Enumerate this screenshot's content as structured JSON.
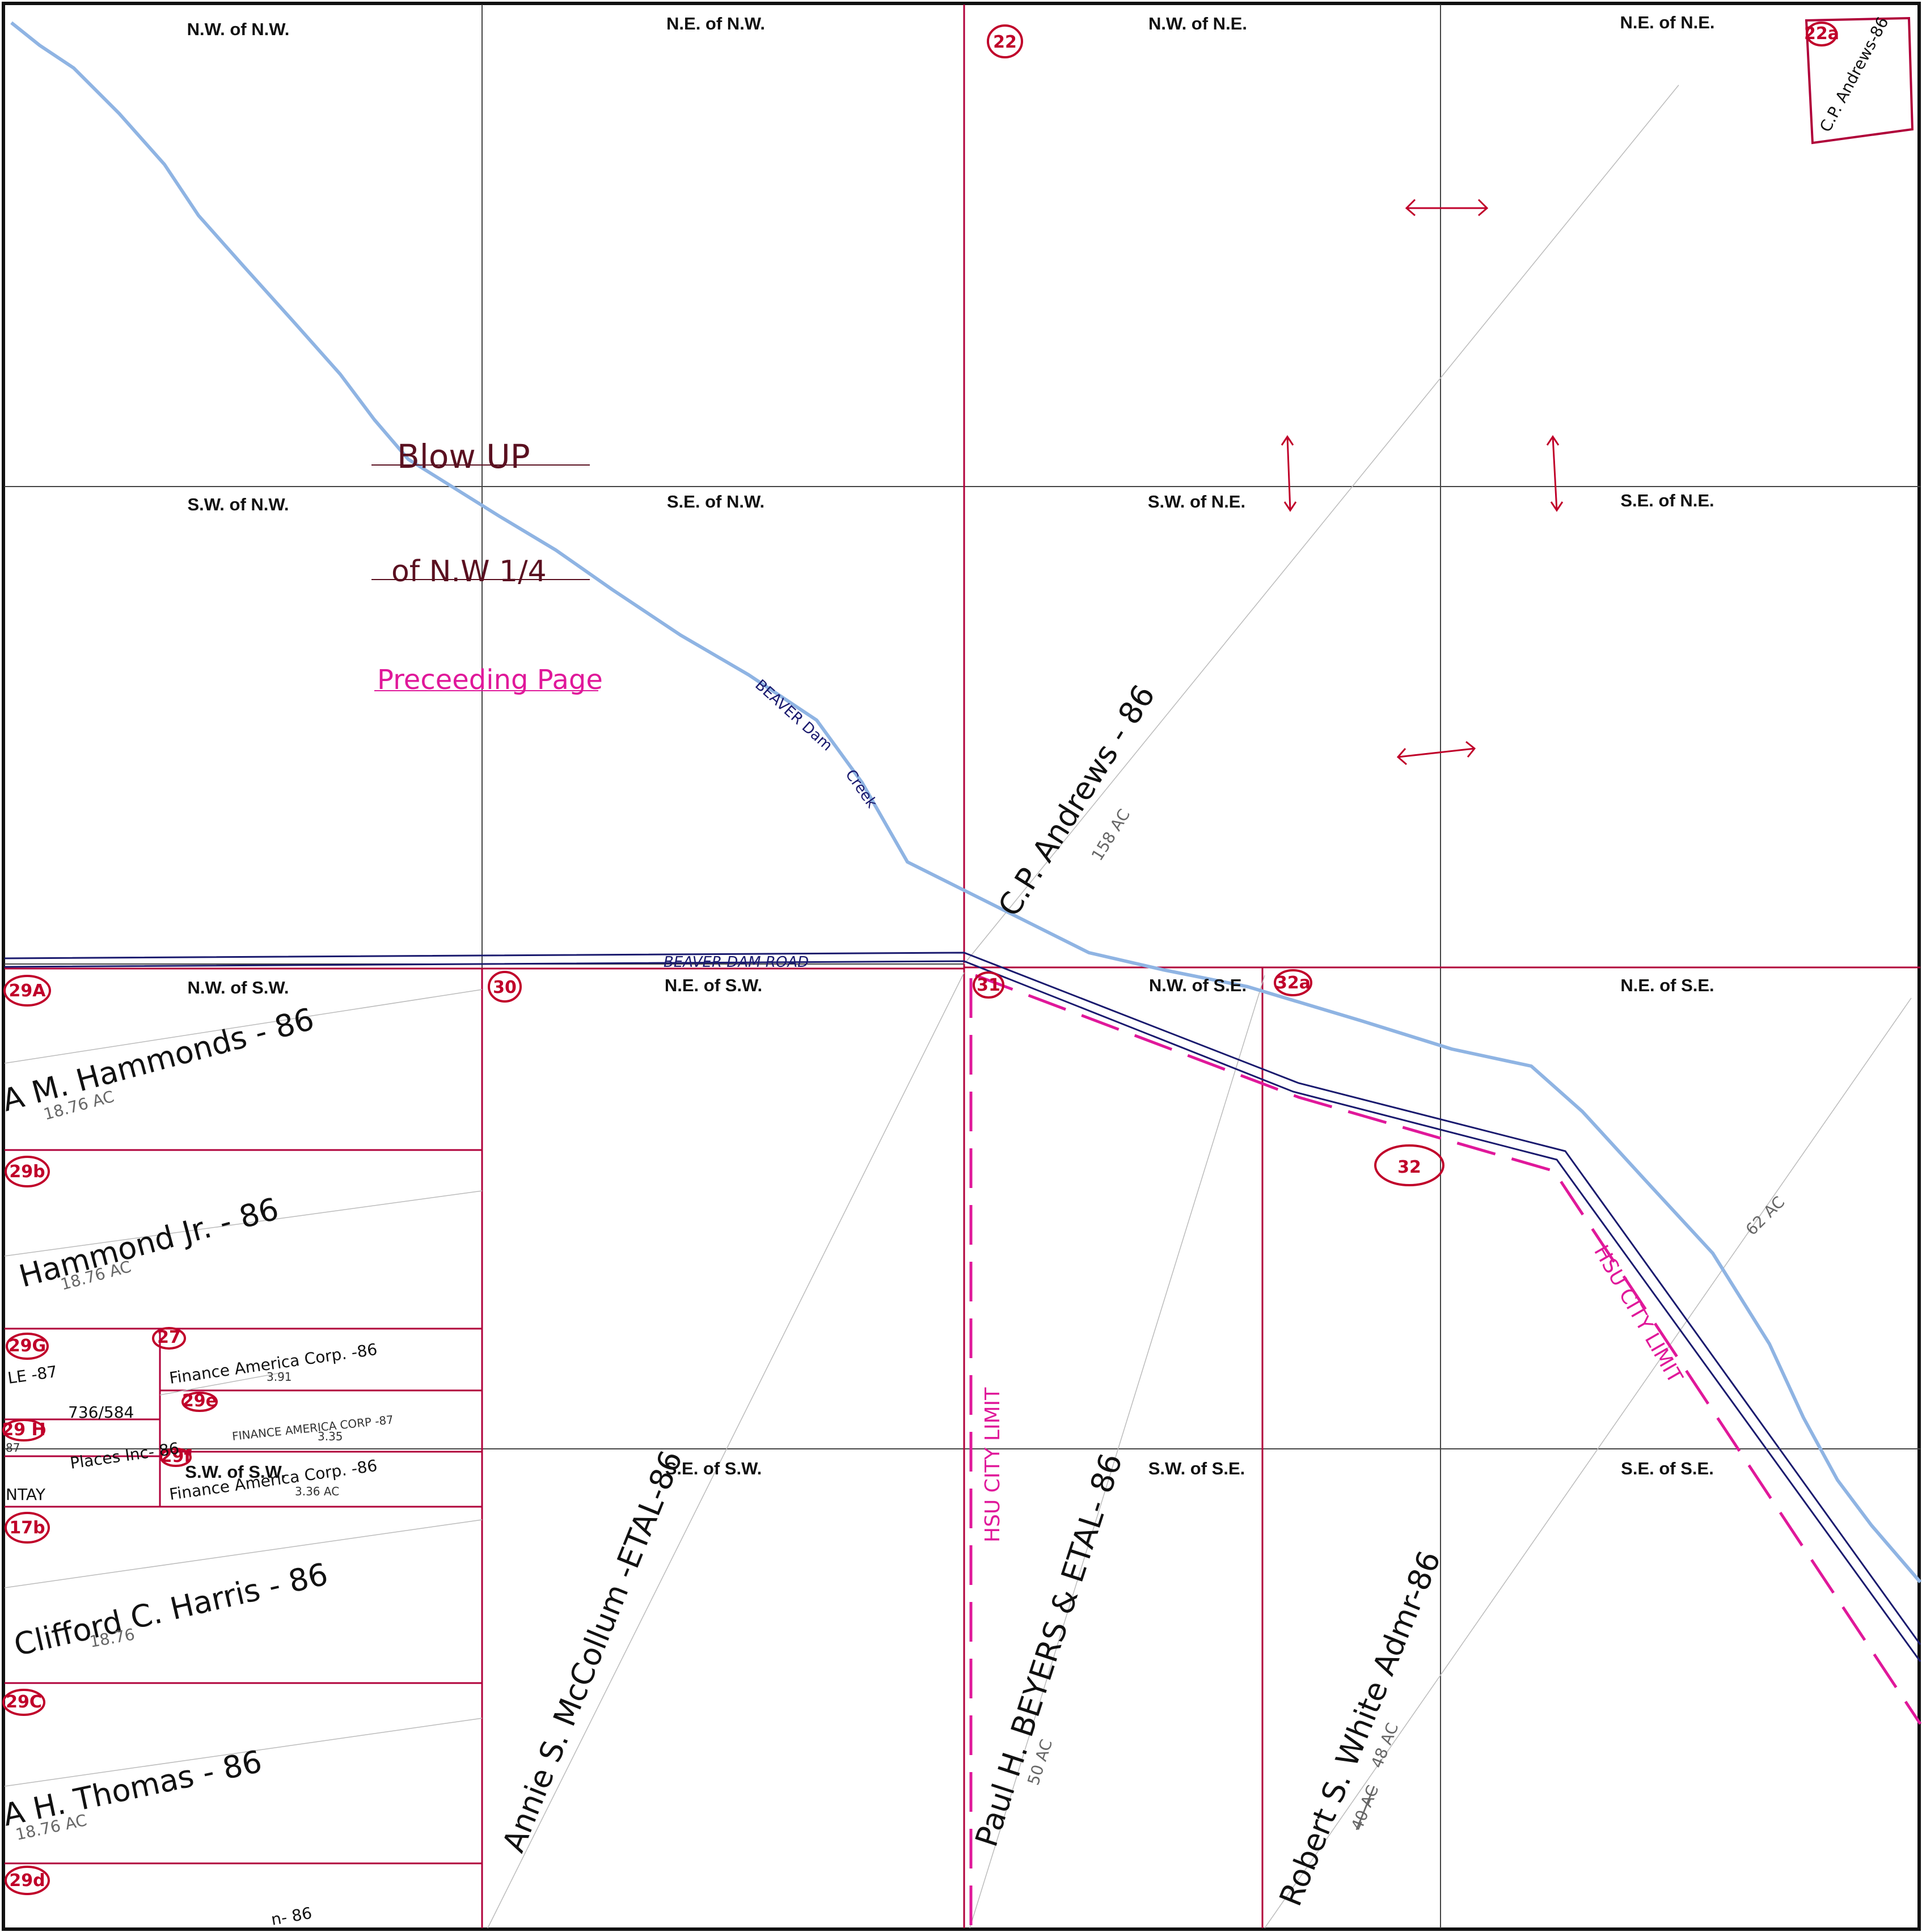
{
  "quarter_labels": {
    "nw_nw": "N.W. of N.W.",
    "ne_nw": "N.E. of N.W.",
    "nw_ne": "N.W. of N.E.",
    "ne_ne": "N.E. of N.E.",
    "sw_nw": "S.W. of N.W.",
    "se_nw": "S.E. of N.W.",
    "sw_ne": "S.W. of N.E.",
    "se_ne": "S.E. of N.E.",
    "nw_sw": "N.W. of S.W.",
    "ne_sw": "N.E. of S.W.",
    "nw_se": "N.W. of S.E.",
    "ne_se": "N.E. of S.E.",
    "sw_sw": "S.W. of S.W.",
    "se_sw": "S.E. of S.W.",
    "sw_se": "S.W. of S.E.",
    "se_se": "S.E. of S.E."
  },
  "notes": {
    "blow_up": "Blow UP",
    "of_nw": "of N.W 1/4",
    "preceding": "Preceeding Page"
  },
  "features": {
    "creek_beaver": "BEAVER Dam",
    "creek_word": "Creek",
    "road": "BEAVER DAM ROAD",
    "city_limit_1": "HSU CITY LIMIT",
    "city_limit_2": "HSU CITY LIMIT"
  },
  "parcel_ids": {
    "p22": "22",
    "p22a": "22a",
    "p29a": "29A",
    "p30": "30",
    "p31": "31",
    "p32a": "32a",
    "p32": "32",
    "p29b": "29b",
    "p29g": "29G",
    "p27": "27",
    "p29e": "29e",
    "p29h": "29 H",
    "p29f": "29f",
    "p17b": "17b",
    "p29c": "29C",
    "p29d": "29d"
  },
  "owners": {
    "cp_andrews_corner": "C.P. Andrews-86",
    "cp_andrews": "C.P. Andrews - 86",
    "cp_andrews_ac": "158 AC",
    "hammonds": "A M. Hammonds - 86",
    "hammonds_ac": "18.76 AC",
    "hammond_jr": "Hammond Jr. - 86",
    "hammond_jr_ac": "18.76 AC",
    "le_87": "LE -87",
    "deed_ref": "736/584",
    "finance_1": "Finance America Corp. -86",
    "finance_1_ac": "3.91",
    "finance_2": "FINANCE AMERICA CORP -87",
    "finance_2_ac": "3.35",
    "places": "Places Inc- 86",
    "ntay": "NTAY",
    "n87": "87",
    "finance_3": "Finance America Corp. -86",
    "finance_3_ac": "3.36 AC",
    "harris": "Clifford C. Harris - 86",
    "harris_ac": "18.76",
    "thomas": "A H. Thomas - 86",
    "thomas_ac": "18.76 AC",
    "bottom_86": "n- 86",
    "mccollum": "Annie S. McCollum -ETAL-86",
    "beyers": "Paul H. BEYERS & ETAL- 86",
    "beyers_ac": "50 AC",
    "white": "Robert S. White Admr-86",
    "white_ac": "48 AC",
    "white_ac_old": "40 AC",
    "ac_62": "62 AC"
  },
  "colors": {
    "creek": "#8fb4e3",
    "road": "#1a1a6e",
    "parcel_line": "#b0003a",
    "city_limit": "#e0189a",
    "grid": "#444444"
  }
}
